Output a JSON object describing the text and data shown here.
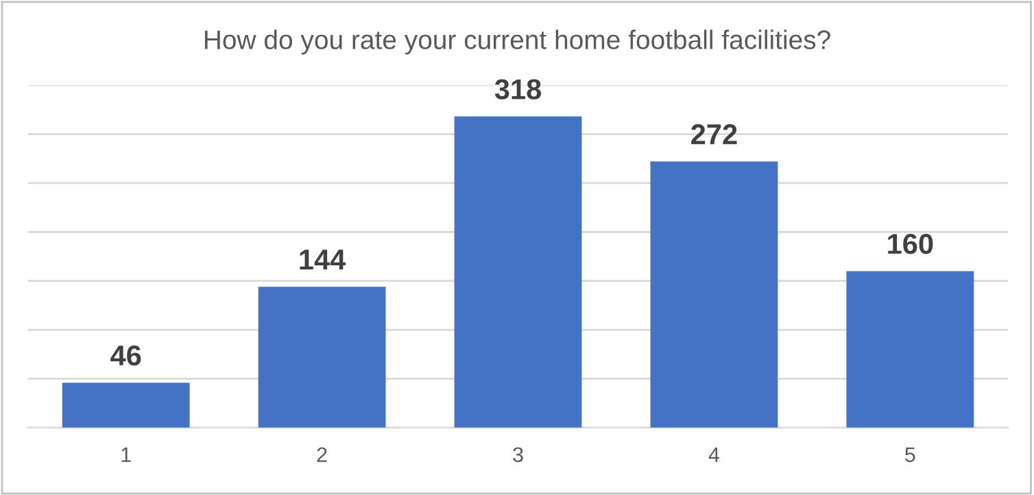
{
  "chart_data": {
    "type": "bar",
    "title": "How do you rate your current home football facilities?",
    "categories": [
      "1",
      "2",
      "3",
      "4",
      "5"
    ],
    "values": [
      46,
      144,
      318,
      272,
      160
    ],
    "color": "#4472c4",
    "data_labels": true,
    "ylim": [
      0,
      350
    ],
    "yticks": [
      {
        "value": 0,
        "label": null
      },
      {
        "value": 50,
        "label": null
      },
      {
        "value": 100,
        "label": null
      },
      {
        "value": 150,
        "label": null
      },
      {
        "value": 200,
        "label": null
      },
      {
        "value": 250,
        "label": null
      },
      {
        "value": 300,
        "label": null
      },
      {
        "value": 350,
        "label": null
      }
    ],
    "tick_labels": "x",
    "grid": "y",
    "legend": false
  }
}
